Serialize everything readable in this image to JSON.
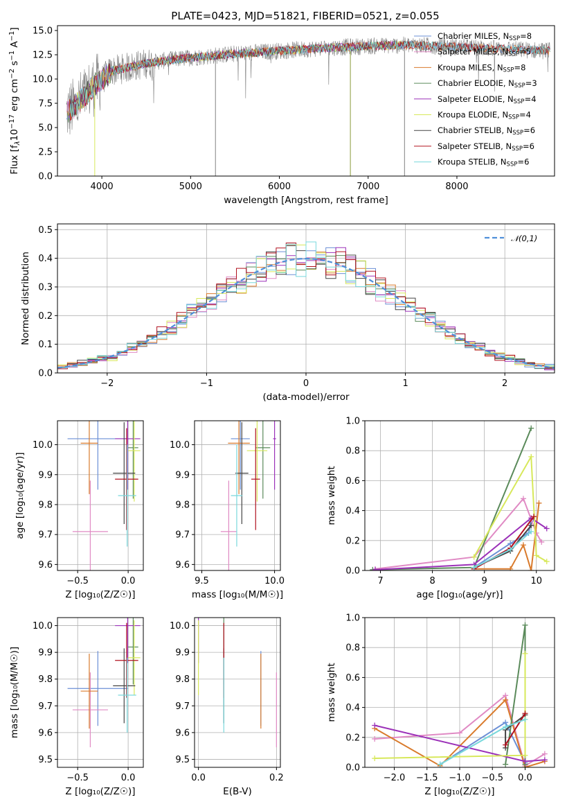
{
  "title": "PLATE=0423, MJD=51821, FIBERID=0521, z=0.055",
  "colors": {
    "Chabrier MILES": "#6b8fd6",
    "Salpeter MILES": "#e08ac4",
    "Kroupa MILES": "#d97a2b",
    "Chabrier ELODIE": "#5a8a5a",
    "Salpeter ELODIE": "#9b30b8",
    "Kroupa ELODIE": "#d7e85a",
    "Chabrier STELIB": "#444444",
    "Salpeter STELIB": "#b0101e",
    "Kroupa STELIB": "#78d8dc",
    "data": "#808080",
    "normal": "#4f8fd9"
  },
  "chart_data": [
    {
      "type": "line",
      "name": "spectrum",
      "xlabel": "wavelength [Angstrom, rest frame]",
      "ylabel_parts": [
        "Flux [f",
        "λ",
        "10",
        "−17",
        " erg cm",
        "−2",
        " s",
        "−1",
        " A",
        "−1",
        "]"
      ],
      "xlim": [
        3500,
        9100
      ],
      "ylim": [
        0,
        15.5
      ],
      "xticks": [
        4000,
        5000,
        6000,
        7000,
        8000
      ],
      "yticks": [
        0.0,
        2.5,
        5.0,
        7.5,
        10.0,
        12.5,
        15.0
      ],
      "grid": false,
      "legend": "right",
      "legend_entries": [
        {
          "model": "Chabrier MILES",
          "nssp": "=8"
        },
        {
          "model": "Salpeter MILES",
          "nssp": "=5"
        },
        {
          "model": "Kroupa MILES",
          "nssp": "=8"
        },
        {
          "model": "Chabrier ELODIE",
          "nssp": "=3"
        },
        {
          "model": "Salpeter ELODIE",
          "nssp": "=4"
        },
        {
          "model": "Kroupa ELODIE",
          "nssp": "=4"
        },
        {
          "model": "Chabrier STELIB",
          "nssp": "=6"
        },
        {
          "model": "Salpeter STELIB",
          "nssp": "=6"
        },
        {
          "model": "Kroupa STELIB",
          "nssp": "=6"
        }
      ],
      "continuum": {
        "wavelength": [
          3600,
          3700,
          3800,
          3900,
          4000,
          4100,
          4200,
          4300,
          4500,
          4700,
          5000,
          5500,
          6000,
          6500,
          7000,
          7500,
          8000,
          8500,
          9050
        ],
        "flux": [
          6.5,
          7.2,
          8.2,
          9.2,
          9.9,
          10.8,
          11.0,
          11.2,
          11.6,
          11.9,
          12.2,
          12.6,
          12.9,
          13.2,
          13.4,
          13.5,
          13.3,
          13.1,
          12.9
        ]
      }
    },
    {
      "type": "bar",
      "name": "residual histogram",
      "xlabel": "(data-model)/error",
      "ylabel": "Normed distribution",
      "xlim": [
        -2.5,
        2.5
      ],
      "ylim": [
        0,
        0.52
      ],
      "xticks": [
        -2,
        -1,
        0,
        1,
        2
      ],
      "yticks": [
        0.0,
        0.1,
        0.2,
        0.3,
        0.4,
        0.5
      ],
      "grid": true,
      "legend": "top-right",
      "legend_label": "𝒩(0,1)",
      "bin_width": 0.1,
      "bin_start": -2.5
    },
    {
      "type": "scatter",
      "name": "age vs Z",
      "xlabel": "Z [log₁₀(Z/Z☉)]",
      "ylabel": "age  [log₁₀(age/yr)]",
      "xlim": [
        -0.7,
        0.15
      ],
      "ylim": [
        9.58,
        10.08
      ],
      "xticks": [
        -0.5,
        0.0
      ],
      "yticks": [
        9.6,
        9.7,
        9.8,
        9.9,
        10.0
      ],
      "grid": true
    },
    {
      "type": "scatter",
      "name": "age vs mass",
      "xlabel": "mass [log₁₀(M/M☉)]",
      "ylabel": "",
      "xlim": [
        9.45,
        10.04
      ],
      "ylim": [
        9.58,
        10.08
      ],
      "xticks": [
        9.5,
        10.0
      ],
      "yticks": [
        9.6,
        9.7,
        9.8,
        9.9,
        10.0
      ],
      "grid": true
    },
    {
      "type": "line",
      "name": "mass weight vs age",
      "xlabel": "age  [log₁₀(age/yr)]",
      "ylabel": "mass weight",
      "xlim": [
        6.7,
        10.35
      ],
      "ylim": [
        0,
        1.0
      ],
      "xticks": [
        7,
        8,
        9,
        10
      ],
      "yticks": [
        0.0,
        0.2,
        0.4,
        0.6,
        0.8,
        1.0
      ],
      "grid": true,
      "series": [
        {
          "name": "Chabrier MILES",
          "x": [
            8.8,
            9.5,
            9.85,
            9.9
          ],
          "y": [
            0.02,
            0.18,
            0.25,
            0.33
          ]
        },
        {
          "name": "Salpeter MILES",
          "x": [
            6.9,
            8.8,
            9.75,
            10.0,
            10.1
          ],
          "y": [
            0.01,
            0.09,
            0.48,
            0.25,
            0.19
          ]
        },
        {
          "name": "Kroupa MILES",
          "x": [
            8.8,
            9.5,
            9.75,
            9.9,
            10.05
          ],
          "y": [
            0.01,
            0.01,
            0.17,
            0.0,
            0.45
          ]
        },
        {
          "name": "Chabrier ELODIE",
          "x": [
            6.85,
            8.8,
            9.9
          ],
          "y": [
            0.005,
            0.02,
            0.95
          ]
        },
        {
          "name": "Salpeter ELODIE",
          "x": [
            6.9,
            8.8,
            9.9,
            10.2
          ],
          "y": [
            0.005,
            0.04,
            0.35,
            0.28
          ]
        },
        {
          "name": "Kroupa ELODIE",
          "x": [
            8.8,
            9.9,
            10.0,
            10.2
          ],
          "y": [
            0.09,
            0.76,
            0.1,
            0.06
          ]
        },
        {
          "name": "Chabrier STELIB",
          "x": [
            8.8,
            9.5,
            9.9
          ],
          "y": [
            0.02,
            0.13,
            0.3
          ]
        },
        {
          "name": "Salpeter STELIB",
          "x": [
            8.8,
            9.5,
            9.95
          ],
          "y": [
            0.01,
            0.15,
            0.36
          ]
        },
        {
          "name": "Kroupa STELIB",
          "x": [
            8.8,
            9.5,
            9.9
          ],
          "y": [
            0.02,
            0.14,
            0.26
          ]
        }
      ]
    },
    {
      "type": "scatter",
      "name": "mass vs Z",
      "xlabel": "Z [log₁₀(Z/Z☉)]",
      "ylabel": "mass [log₁₀(M/M☉)]",
      "xlim": [
        -0.7,
        0.15
      ],
      "ylim": [
        9.47,
        10.03
      ],
      "xticks": [
        -0.5,
        0.0
      ],
      "yticks": [
        9.5,
        9.6,
        9.7,
        9.8,
        9.9,
        10.0
      ],
      "grid": true
    },
    {
      "type": "scatter",
      "name": "mass vs E(B-V)",
      "xlabel": "E(B-V)",
      "ylabel": "",
      "xlim": [
        -0.01,
        0.21
      ],
      "ylim": [
        9.47,
        10.03
      ],
      "xticks": [
        0.0,
        0.2
      ],
      "yticks": [
        9.5,
        9.6,
        9.7,
        9.8,
        9.9,
        10.0
      ],
      "grid": true
    },
    {
      "type": "line",
      "name": "mass weight vs Z",
      "xlabel": "Z [log₁₀(Z/Z☉)]",
      "ylabel": "mass weight",
      "xlim": [
        -2.45,
        0.45
      ],
      "ylim": [
        0,
        1.0
      ],
      "xticks": [
        -2.0,
        -1.5,
        -1.0,
        -0.5,
        0.0
      ],
      "yticks": [
        0.0,
        0.2,
        0.4,
        0.6,
        0.8,
        1.0
      ],
      "grid": true,
      "series": [
        {
          "name": "Chabrier MILES",
          "x": [
            -1.3,
            -0.3,
            0.0
          ],
          "y": [
            0.02,
            0.3,
            0.03
          ]
        },
        {
          "name": "Salpeter MILES",
          "x": [
            -2.3,
            -1.0,
            -0.3,
            0.0,
            0.3
          ],
          "y": [
            0.19,
            0.23,
            0.48,
            0.01,
            0.09
          ]
        },
        {
          "name": "Kroupa MILES",
          "x": [
            -2.3,
            -1.3,
            -0.3,
            0.0,
            0.3
          ],
          "y": [
            0.26,
            0.01,
            0.45,
            0.0,
            0.04
          ]
        },
        {
          "name": "Chabrier ELODIE",
          "x": [
            -0.3,
            0.0,
            0.0
          ],
          "y": [
            0.02,
            0.95,
            0.02
          ]
        },
        {
          "name": "Salpeter ELODIE",
          "x": [
            -2.3,
            0.0,
            0.3
          ],
          "y": [
            0.28,
            0.04,
            0.05
          ]
        },
        {
          "name": "Kroupa ELODIE",
          "x": [
            -2.3,
            0.0,
            0.0
          ],
          "y": [
            0.06,
            0.08,
            0.76
          ]
        },
        {
          "name": "Chabrier STELIB",
          "x": [
            -0.3,
            -0.3,
            0.0
          ],
          "y": [
            0.13,
            0.25,
            0.35
          ]
        },
        {
          "name": "Salpeter STELIB",
          "x": [
            -0.3,
            0.0
          ],
          "y": [
            0.15,
            0.36
          ]
        },
        {
          "name": "Kroupa STELIB",
          "x": [
            -1.3,
            -0.3,
            0.0
          ],
          "y": [
            0.02,
            0.27,
            0.32
          ]
        }
      ]
    }
  ],
  "summary": {
    "Chabrier MILES": {
      "Z": [
        -0.6,
        0.0
      ],
      "age": [
        9.97,
        10.07
      ],
      "mass": [
        9.7,
        9.83
      ],
      "ebv": 0.16
    },
    "Salpeter MILES": {
      "Z": [
        -0.55,
        -0.2
      ],
      "age": [
        9.79,
        9.63
      ],
      "mass": [
        9.63,
        9.74
      ],
      "ebv": 0.2
    },
    "Kroupa MILES": {
      "Z": [
        -0.47,
        -0.3
      ],
      "age": [
        9.96,
        10.05
      ],
      "mass": [
        9.68,
        9.83
      ],
      "ebv": 0.16
    },
    "Chabrier ELODIE": {
      "Z": [
        0.0,
        0.1
      ],
      "age": [
        9.9,
        10.08
      ],
      "mass": [
        9.87,
        9.97
      ],
      "ebv": 0.065
    },
    "Salpeter ELODIE": {
      "Z": [
        -0.13,
        0.12
      ],
      "age": [
        9.97,
        10.07
      ],
      "mass": [
        9.99,
        10.01
      ],
      "ebv": 0.0
    },
    "Kroupa ELODIE": {
      "Z": [
        0.0,
        0.12
      ],
      "age": [
        9.9,
        10.06
      ],
      "mass": [
        9.81,
        9.95
      ],
      "ebv": 0.0
    },
    "Chabrier STELIB": {
      "Z": [
        -0.15,
        0.07
      ],
      "age": [
        9.83,
        9.98
      ],
      "mass": [
        9.73,
        9.82
      ],
      "ebv": 0.065
    },
    "Salpeter STELIB": {
      "Z": [
        -0.13,
        0.1
      ],
      "age": [
        9.8,
        9.97
      ],
      "mass": [
        9.84,
        9.9
      ],
      "ebv": 0.065
    },
    "Kroupa STELIB": {
      "Z": [
        -0.1,
        0.08
      ],
      "age": [
        9.76,
        9.9
      ],
      "mass": [
        9.7,
        9.78
      ],
      "ebv": 0.065
    }
  }
}
